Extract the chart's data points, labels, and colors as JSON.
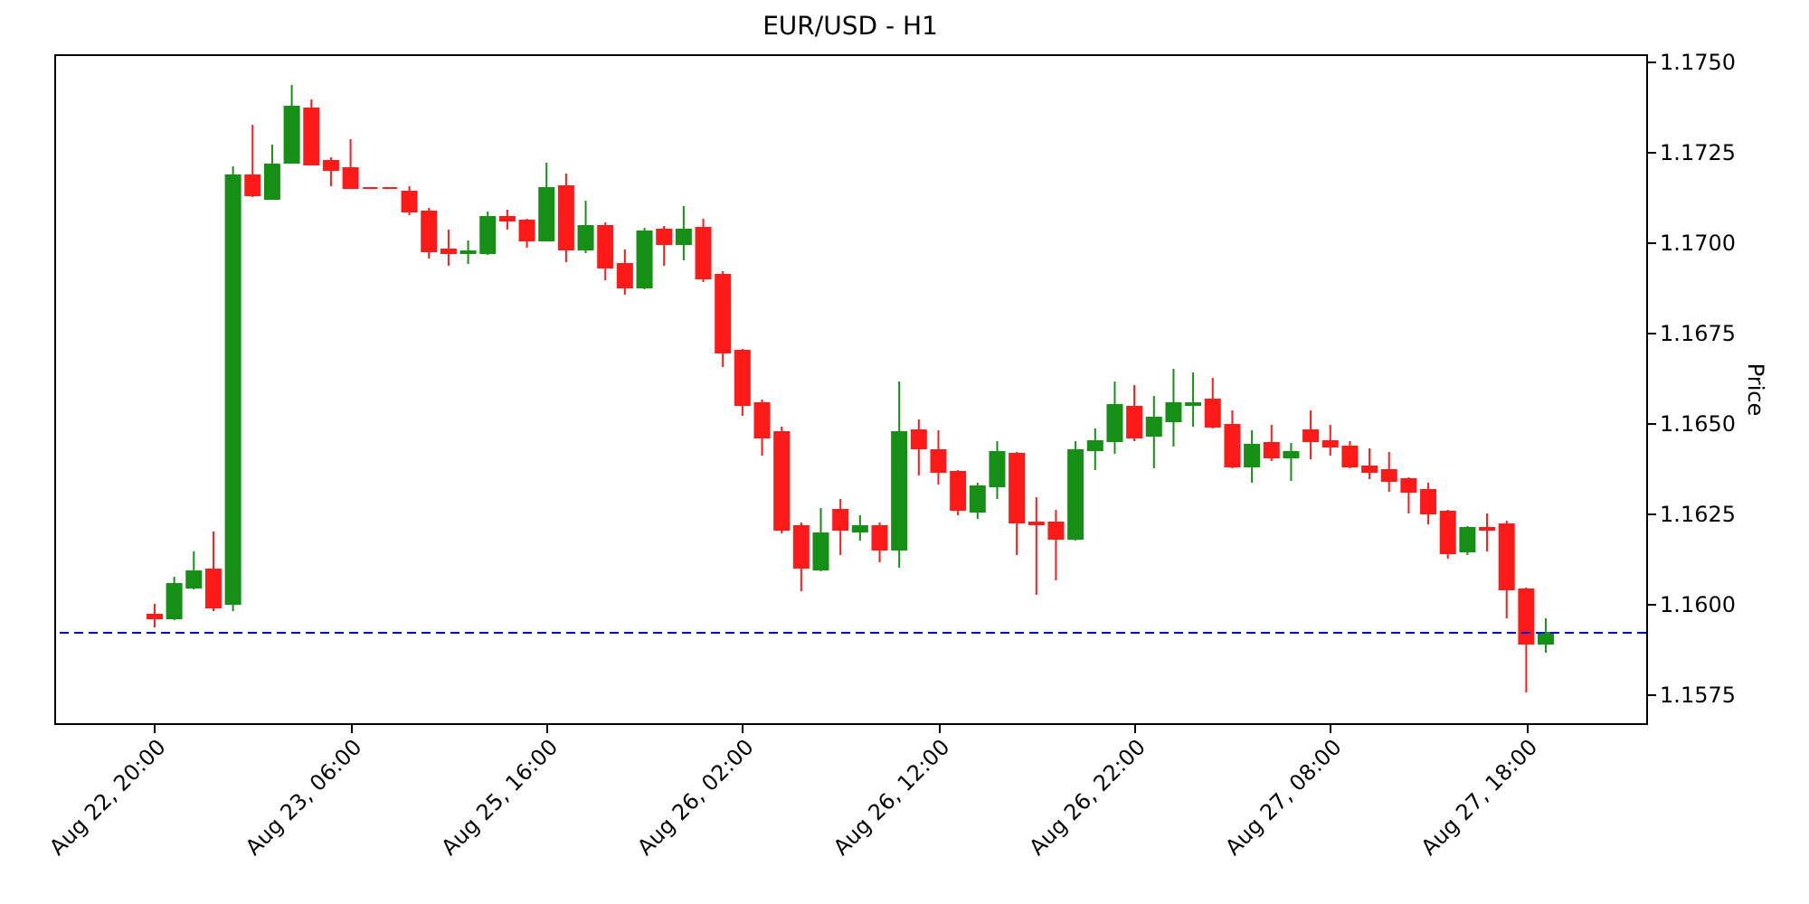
{
  "chart_data": {
    "type": "candlestick",
    "title": "EUR/USD - H1",
    "ylabel": "Price",
    "categories": [
      "Aug 22, 20:00",
      null,
      null,
      null,
      null,
      null,
      null,
      null,
      null,
      null,
      "Aug 23, 06:00",
      null,
      null,
      null,
      null,
      null,
      null,
      null,
      null,
      null,
      "Aug 25, 16:00",
      null,
      null,
      null,
      null,
      null,
      null,
      null,
      null,
      null,
      "Aug 26, 02:00",
      null,
      null,
      null,
      null,
      null,
      null,
      null,
      null,
      null,
      "Aug 26, 12:00",
      null,
      null,
      null,
      null,
      null,
      null,
      null,
      null,
      null,
      "Aug 26, 22:00",
      null,
      null,
      null,
      null,
      null,
      null,
      null,
      null,
      null,
      "Aug 27, 08:00",
      null,
      null,
      null,
      null,
      null,
      null,
      null,
      null,
      null,
      "Aug 27, 18:00",
      null
    ],
    "ohlc": [
      [
        1.1597,
        1.16,
        1.15935,
        1.1596
      ],
      [
        1.1596,
        1.16075,
        1.15955,
        1.16055
      ],
      [
        1.16045,
        1.16145,
        1.1604,
        1.1609
      ],
      [
        1.16095,
        1.162,
        1.1598,
        1.1599
      ],
      [
        1.16,
        1.1721,
        1.1598,
        1.17185
      ],
      [
        1.17185,
        1.17325,
        1.17125,
        1.1713
      ],
      [
        1.1712,
        1.1727,
        1.1712,
        1.17215
      ],
      [
        1.1722,
        1.17435,
        1.1722,
        1.17375
      ],
      [
        1.1737,
        1.17395,
        1.17215,
        1.17215
      ],
      [
        1.17225,
        1.17235,
        1.17155,
        1.172
      ],
      [
        1.17205,
        1.17285,
        1.1715,
        1.1715
      ],
      [
        1.1715,
        1.1715,
        1.1715,
        1.1715
      ],
      [
        1.1715,
        1.1715,
        1.1715,
        1.1715
      ],
      [
        1.1714,
        1.17155,
        1.17075,
        1.17085
      ],
      [
        1.17085,
        1.17095,
        1.16955,
        1.16975
      ],
      [
        1.1698,
        1.17035,
        1.16935,
        1.1697
      ],
      [
        1.1697,
        1.17005,
        1.1694,
        1.16975
      ],
      [
        1.1697,
        1.17085,
        1.16965,
        1.1707
      ],
      [
        1.1707,
        1.1709,
        1.17035,
        1.1706
      ],
      [
        1.1706,
        1.17065,
        1.16985,
        1.17005
      ],
      [
        1.17005,
        1.1722,
        1.17005,
        1.1715
      ],
      [
        1.17155,
        1.1719,
        1.16945,
        1.1698
      ],
      [
        1.1698,
        1.17115,
        1.1697,
        1.17045
      ],
      [
        1.17045,
        1.17055,
        1.16895,
        1.1693
      ],
      [
        1.1694,
        1.1698,
        1.16855,
        1.16875
      ],
      [
        1.16875,
        1.1704,
        1.1687,
        1.1703
      ],
      [
        1.17035,
        1.17045,
        1.16935,
        1.16995
      ],
      [
        1.16995,
        1.171,
        1.1695,
        1.17035
      ],
      [
        1.1704,
        1.17065,
        1.1689,
        1.169
      ],
      [
        1.1691,
        1.1692,
        1.16655,
        1.16695
      ],
      [
        1.167,
        1.16705,
        1.1652,
        1.1655
      ],
      [
        1.16555,
        1.16565,
        1.1641,
        1.1646
      ],
      [
        1.16475,
        1.1649,
        1.16195,
        1.16205
      ],
      [
        1.16215,
        1.16225,
        1.16035,
        1.161
      ],
      [
        1.16095,
        1.16265,
        1.1609,
        1.16195
      ],
      [
        1.1626,
        1.1629,
        1.16135,
        1.16205
      ],
      [
        1.162,
        1.16245,
        1.16175,
        1.16215
      ],
      [
        1.16215,
        1.16225,
        1.16115,
        1.1615
      ],
      [
        1.1615,
        1.16615,
        1.161,
        1.16475
      ],
      [
        1.1648,
        1.1651,
        1.16355,
        1.1643
      ],
      [
        1.16425,
        1.1648,
        1.1633,
        1.16365
      ],
      [
        1.16365,
        1.1637,
        1.16245,
        1.1626
      ],
      [
        1.16255,
        1.16335,
        1.16235,
        1.16325
      ],
      [
        1.16325,
        1.1645,
        1.1629,
        1.1642
      ],
      [
        1.16415,
        1.1642,
        1.16135,
        1.16225
      ],
      [
        1.16225,
        1.16295,
        1.16025,
        1.1622
      ],
      [
        1.16225,
        1.1626,
        1.16065,
        1.1618
      ],
      [
        1.1618,
        1.1645,
        1.16175,
        1.16425
      ],
      [
        1.16425,
        1.16485,
        1.1637,
        1.1645
      ],
      [
        1.1645,
        1.16615,
        1.16415,
        1.1655
      ],
      [
        1.16545,
        1.16605,
        1.1645,
        1.1646
      ],
      [
        1.16465,
        1.16575,
        1.16375,
        1.16515
      ],
      [
        1.16505,
        1.1665,
        1.16435,
        1.16555
      ],
      [
        1.1655,
        1.1664,
        1.1649,
        1.16555
      ],
      [
        1.16565,
        1.16625,
        1.16485,
        1.1649
      ],
      [
        1.16495,
        1.16535,
        1.16375,
        1.1638
      ],
      [
        1.1638,
        1.1648,
        1.16335,
        1.1644
      ],
      [
        1.16445,
        1.16495,
        1.16395,
        1.16405
      ],
      [
        1.16405,
        1.16445,
        1.1634,
        1.1642
      ],
      [
        1.1648,
        1.16535,
        1.164,
        1.1645
      ],
      [
        1.1645,
        1.16495,
        1.1641,
        1.16435
      ],
      [
        1.16435,
        1.1645,
        1.16375,
        1.1638
      ],
      [
        1.1638,
        1.1643,
        1.16345,
        1.16365
      ],
      [
        1.1637,
        1.1642,
        1.1631,
        1.1634
      ],
      [
        1.16345,
        1.1635,
        1.1625,
        1.1631
      ],
      [
        1.16315,
        1.16335,
        1.1622,
        1.1625
      ],
      [
        1.16255,
        1.1626,
        1.16125,
        1.1614
      ],
      [
        1.16145,
        1.16215,
        1.16135,
        1.1621
      ],
      [
        1.1621,
        1.1625,
        1.16145,
        1.16205
      ],
      [
        1.1622,
        1.1623,
        1.1596,
        1.1604
      ],
      [
        1.1604,
        1.16045,
        1.15755,
        1.1589
      ],
      [
        1.1589,
        1.1596,
        1.15865,
        1.1592
      ]
    ],
    "colors": [
      "#ff1a1a",
      "#158f15",
      "#158f15",
      "#ff1a1a",
      "#158f15",
      "#ff1a1a",
      "#158f15",
      "#158f15",
      "#ff1a1a",
      "#ff1a1a",
      "#ff1a1a",
      "#ff1a1a",
      "#ff1a1a",
      "#ff1a1a",
      "#ff1a1a",
      "#ff1a1a",
      "#158f15",
      "#158f15",
      "#ff1a1a",
      "#ff1a1a",
      "#158f15",
      "#ff1a1a",
      "#158f15",
      "#ff1a1a",
      "#ff1a1a",
      "#158f15",
      "#ff1a1a",
      "#158f15",
      "#ff1a1a",
      "#ff1a1a",
      "#ff1a1a",
      "#ff1a1a",
      "#ff1a1a",
      "#ff1a1a",
      "#158f15",
      "#ff1a1a",
      "#158f15",
      "#ff1a1a",
      "#158f15",
      "#ff1a1a",
      "#ff1a1a",
      "#ff1a1a",
      "#158f15",
      "#158f15",
      "#ff1a1a",
      "#ff1a1a",
      "#ff1a1a",
      "#158f15",
      "#158f15",
      "#158f15",
      "#ff1a1a",
      "#158f15",
      "#158f15",
      "#158f15",
      "#ff1a1a",
      "#ff1a1a",
      "#158f15",
      "#ff1a1a",
      "#158f15",
      "#ff1a1a",
      "#ff1a1a",
      "#ff1a1a",
      "#ff1a1a",
      "#ff1a1a",
      "#ff1a1a",
      "#ff1a1a",
      "#ff1a1a",
      "#158f15",
      "#ff1a1a",
      "#ff1a1a",
      "#ff1a1a",
      "#158f15"
    ],
    "ylim": [
      1.1567,
      1.1752
    ],
    "yticks": [
      {
        "value": 1.1575,
        "label": "1.1575"
      },
      {
        "value": 1.16,
        "label": "1.1600"
      },
      {
        "value": 1.1625,
        "label": "1.1625"
      },
      {
        "value": 1.165,
        "label": "1.1650"
      },
      {
        "value": 1.1675,
        "label": "1.1675"
      },
      {
        "value": 1.17,
        "label": "1.1700"
      },
      {
        "value": 1.1725,
        "label": "1.1725"
      },
      {
        "value": 1.175,
        "label": "1.1750"
      }
    ],
    "ref_lines": [
      {
        "axis": "y",
        "value": 1.1592,
        "color": "#0000ff",
        "line_style": "dashed"
      }
    ],
    "grid": false
  }
}
